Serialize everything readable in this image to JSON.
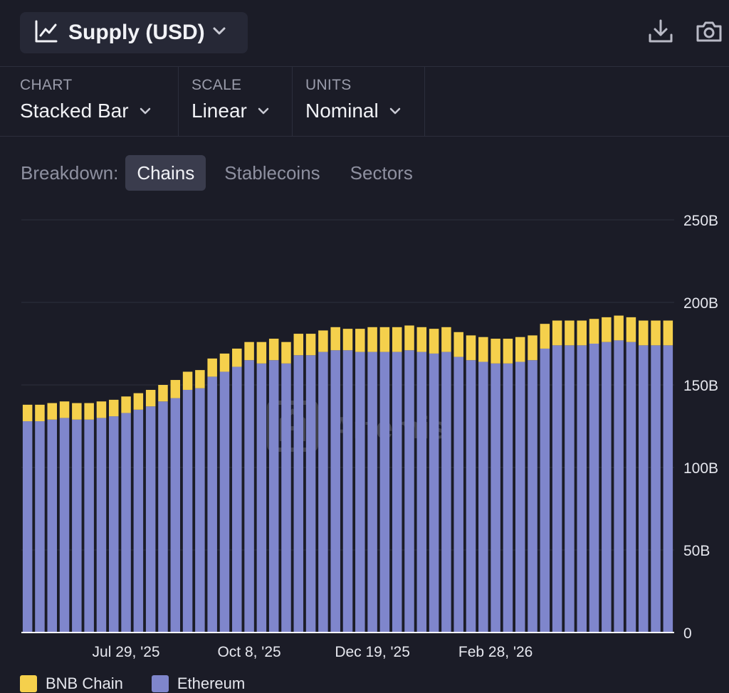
{
  "header": {
    "title": "Supply (USD)",
    "title_icon": "line-chart-icon",
    "actions": [
      {
        "icon": "download-icon"
      },
      {
        "icon": "camera-icon"
      }
    ]
  },
  "controls": [
    {
      "label": "CHART",
      "value": "Stacked Bar"
    },
    {
      "label": "SCALE",
      "value": "Linear"
    },
    {
      "label": "UNITS",
      "value": "Nominal"
    }
  ],
  "breakdown": {
    "label": "Breakdown:",
    "tabs": [
      "Chains",
      "Stablecoins",
      "Sectors"
    ],
    "active": "Chains"
  },
  "watermark": "Artemis",
  "colors": {
    "background": "#1b1c27",
    "bnb": "#f5d04c",
    "ethereum": "#7f86cc"
  },
  "chart_data": {
    "type": "bar",
    "stacked": true,
    "xlabel": "",
    "ylabel": "",
    "ylim": [
      0,
      250
    ],
    "y_ticks": [
      "0",
      "50B",
      "100B",
      "150B",
      "200B",
      "250B"
    ],
    "y_tick_values": [
      0,
      50,
      100,
      150,
      200,
      250
    ],
    "x_ticks": [
      {
        "label": "Jul 29, '25",
        "index": 8
      },
      {
        "label": "Oct 8, '25",
        "index": 18
      },
      {
        "label": "Dec 19, '25",
        "index": 28
      },
      {
        "label": "Feb 28, '26",
        "index": 38
      }
    ],
    "categories_count": 53,
    "series": [
      {
        "name": "Ethereum",
        "color": "#7f86cc",
        "values": [
          128,
          128,
          129,
          130,
          129,
          129,
          130,
          131,
          133,
          135,
          137,
          140,
          142,
          147,
          148,
          155,
          158,
          161,
          165,
          163,
          165,
          163,
          168,
          168,
          170,
          171,
          171,
          170,
          170,
          170,
          170,
          171,
          170,
          169,
          170,
          167,
          165,
          164,
          163,
          163,
          164,
          165,
          172,
          174,
          174,
          174,
          175,
          176,
          177,
          176,
          174,
          174,
          174
        ]
      },
      {
        "name": "BNB Chain",
        "color": "#f5d04c",
        "values": [
          10,
          10,
          10,
          10,
          10,
          10,
          10,
          10,
          10,
          10,
          10,
          10,
          11,
          11,
          11,
          11,
          11,
          11,
          11,
          13,
          13,
          13,
          13,
          13,
          13,
          14,
          13,
          14,
          15,
          15,
          15,
          15,
          15,
          15,
          15,
          15,
          15,
          15,
          15,
          15,
          15,
          15,
          15,
          15,
          15,
          15,
          15,
          15,
          15,
          15,
          15,
          15,
          15
        ]
      }
    ],
    "legend": [
      "BNB Chain",
      "Ethereum"
    ],
    "legend_position": "bottom-left",
    "grid": true
  }
}
